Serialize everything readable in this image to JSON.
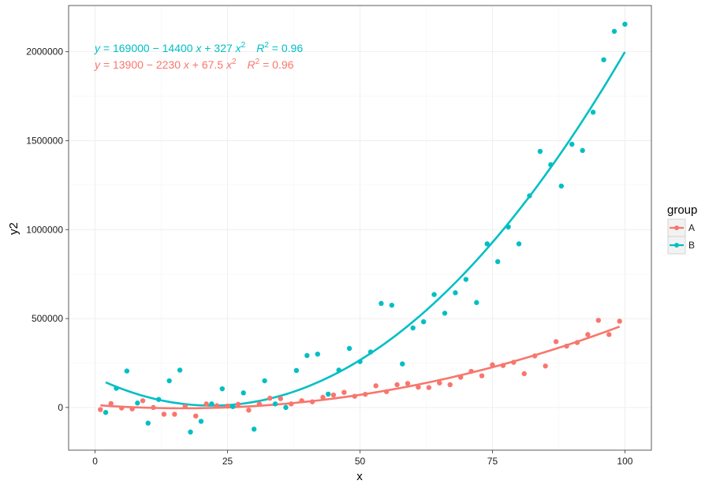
{
  "chart_data": {
    "type": "scatter",
    "xlabel": "x",
    "ylabel": "y2",
    "xlim": [
      -5,
      105
    ],
    "ylim": [
      -240000,
      2260000
    ],
    "xticks": [
      0,
      25,
      50,
      75,
      100
    ],
    "yticks": [
      0,
      500000,
      1000000,
      1500000,
      2000000
    ],
    "ytick_labels": [
      "0",
      "500000",
      "1000000",
      "1500000",
      "2000000"
    ],
    "grid": true,
    "legend": {
      "title": "group",
      "position": "right"
    },
    "series": [
      {
        "name": "A",
        "color": "#f8766d",
        "fit": {
          "c0": 13900,
          "c1": -2230,
          "c2": 67.5,
          "x_range": [
            1,
            99
          ]
        },
        "equation": {
          "y": "y",
          "body": " = 13900 − 2230 ",
          "x1": "x",
          "mid": " + 67.5 ",
          "x2": "x",
          "sup": "2",
          "r2_label": "R",
          "r2_sup": "2",
          "r2_value": " = 0.96"
        },
        "points": [
          [
            1,
            -12000
          ],
          [
            3,
            22000
          ],
          [
            5,
            -3000
          ],
          [
            7,
            -8000
          ],
          [
            9,
            38000
          ],
          [
            11,
            0
          ],
          [
            13,
            -38000
          ],
          [
            15,
            -38000
          ],
          [
            17,
            5000
          ],
          [
            19,
            -48000
          ],
          [
            21,
            20000
          ],
          [
            23,
            10000
          ],
          [
            25,
            8000
          ],
          [
            27,
            18000
          ],
          [
            29,
            -15000
          ],
          [
            31,
            20000
          ],
          [
            33,
            52000
          ],
          [
            35,
            50000
          ],
          [
            37,
            20000
          ],
          [
            39,
            38000
          ],
          [
            41,
            32000
          ],
          [
            43,
            57000
          ],
          [
            45,
            70000
          ],
          [
            47,
            85000
          ],
          [
            49,
            63000
          ],
          [
            51,
            74000
          ],
          [
            53,
            122000
          ],
          [
            55,
            89000
          ],
          [
            57,
            128000
          ],
          [
            59,
            135000
          ],
          [
            61,
            114000
          ],
          [
            63,
            112000
          ],
          [
            65,
            138000
          ],
          [
            67,
            128000
          ],
          [
            69,
            170000
          ],
          [
            71,
            203000
          ],
          [
            73,
            178000
          ],
          [
            75,
            240000
          ],
          [
            77,
            236000
          ],
          [
            79,
            254000
          ],
          [
            81,
            190000
          ],
          [
            83,
            290000
          ],
          [
            85,
            233000
          ],
          [
            87,
            370000
          ],
          [
            89,
            345000
          ],
          [
            91,
            365000
          ],
          [
            93,
            410000
          ],
          [
            95,
            490000
          ],
          [
            97,
            410000
          ],
          [
            99,
            485000
          ]
        ]
      },
      {
        "name": "B",
        "color": "#00bfc4",
        "fit": {
          "c0": 169000,
          "c1": -14400,
          "c2": 327,
          "x_range": [
            2,
            100
          ]
        },
        "equation": {
          "y": "y",
          "body": " = 169000 − 14400 ",
          "x1": "x",
          "mid": " + 327 ",
          "x2": "x",
          "sup": "2",
          "r2_label": "R",
          "r2_sup": "2",
          "r2_value": " = 0.96"
        },
        "points": [
          [
            2,
            -28000
          ],
          [
            4,
            108000
          ],
          [
            6,
            205000
          ],
          [
            8,
            25000
          ],
          [
            10,
            -88000
          ],
          [
            12,
            45000
          ],
          [
            14,
            150000
          ],
          [
            16,
            210000
          ],
          [
            18,
            -138000
          ],
          [
            20,
            -78000
          ],
          [
            22,
            20000
          ],
          [
            24,
            105000
          ],
          [
            26,
            5000
          ],
          [
            28,
            82000
          ],
          [
            30,
            -122000
          ],
          [
            32,
            150000
          ],
          [
            34,
            20000
          ],
          [
            36,
            0
          ],
          [
            38,
            208000
          ],
          [
            40,
            292000
          ],
          [
            42,
            300000
          ],
          [
            44,
            75000
          ],
          [
            46,
            210000
          ],
          [
            48,
            332000
          ],
          [
            50,
            258000
          ],
          [
            52,
            312000
          ],
          [
            54,
            585000
          ],
          [
            56,
            575000
          ],
          [
            58,
            245000
          ],
          [
            60,
            447000
          ],
          [
            62,
            482000
          ],
          [
            64,
            635000
          ],
          [
            66,
            530000
          ],
          [
            68,
            645000
          ],
          [
            70,
            720000
          ],
          [
            72,
            590000
          ],
          [
            74,
            920000
          ],
          [
            76,
            820000
          ],
          [
            78,
            1015000
          ],
          [
            80,
            920000
          ],
          [
            82,
            1190000
          ],
          [
            84,
            1440000
          ],
          [
            86,
            1365000
          ],
          [
            88,
            1245000
          ],
          [
            90,
            1480000
          ],
          [
            92,
            1445000
          ],
          [
            94,
            1660000
          ],
          [
            96,
            1955000
          ],
          [
            98,
            2115000
          ],
          [
            100,
            2155000
          ]
        ]
      }
    ]
  }
}
